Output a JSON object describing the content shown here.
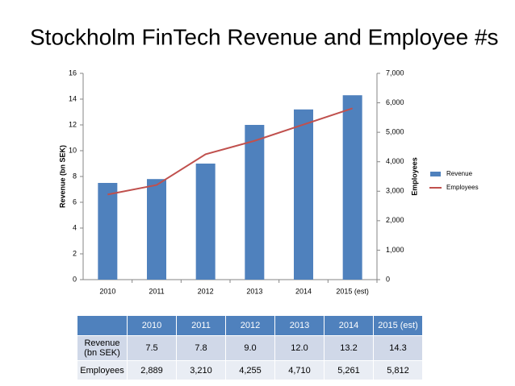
{
  "chart_data": {
    "type": "bar",
    "title": "Stockholm FinTech Revenue and Employee #s",
    "categories": [
      "2010",
      "2011",
      "2012",
      "2013",
      "2014",
      "2015 (est)"
    ],
    "series": [
      {
        "name": "Revenue",
        "color": "#4f81bd",
        "values": [
          7.5,
          7.8,
          9.0,
          12.0,
          13.2,
          14.3
        ]
      },
      {
        "name": "Employees",
        "color": "#c0504d",
        "type": "line",
        "axis": "y2",
        "values": [
          2889,
          3210,
          4255,
          4710,
          5261,
          5812
        ]
      }
    ],
    "ylabel": "Revenue (bn SEK)",
    "y2label": "Employees",
    "ylim": [
      0,
      16
    ],
    "yticks": [
      0,
      2,
      4,
      6,
      8,
      10,
      12,
      14,
      16
    ],
    "y2lim": [
      0,
      7000
    ],
    "y2ticks": [
      0,
      {
        "value": 1000,
        "label": "1,000"
      },
      {
        "value": 2000,
        "label": "2,000"
      },
      {
        "value": 3000,
        "label": "3,000"
      },
      {
        "value": 4000,
        "label": "4,000"
      },
      {
        "value": 5000,
        "label": "5,000"
      },
      {
        "value": 6000,
        "label": "6,000"
      },
      {
        "value": 7000,
        "label": "7,000"
      }
    ],
    "grid": false,
    "legend": "right"
  },
  "table": {
    "columns": [
      "2010",
      "2011",
      "2012",
      "2013",
      "2014",
      "2015 (est)"
    ],
    "rows": [
      {
        "label": "Revenue (bn SEK)",
        "cells": [
          "7.5",
          "7.8",
          "9.0",
          "12.0",
          "13.2",
          "14.3"
        ]
      },
      {
        "label": "Employees",
        "cells": [
          "2,889",
          "3,210",
          "4,255",
          "4,710",
          "5,261",
          "5,812"
        ]
      }
    ]
  }
}
